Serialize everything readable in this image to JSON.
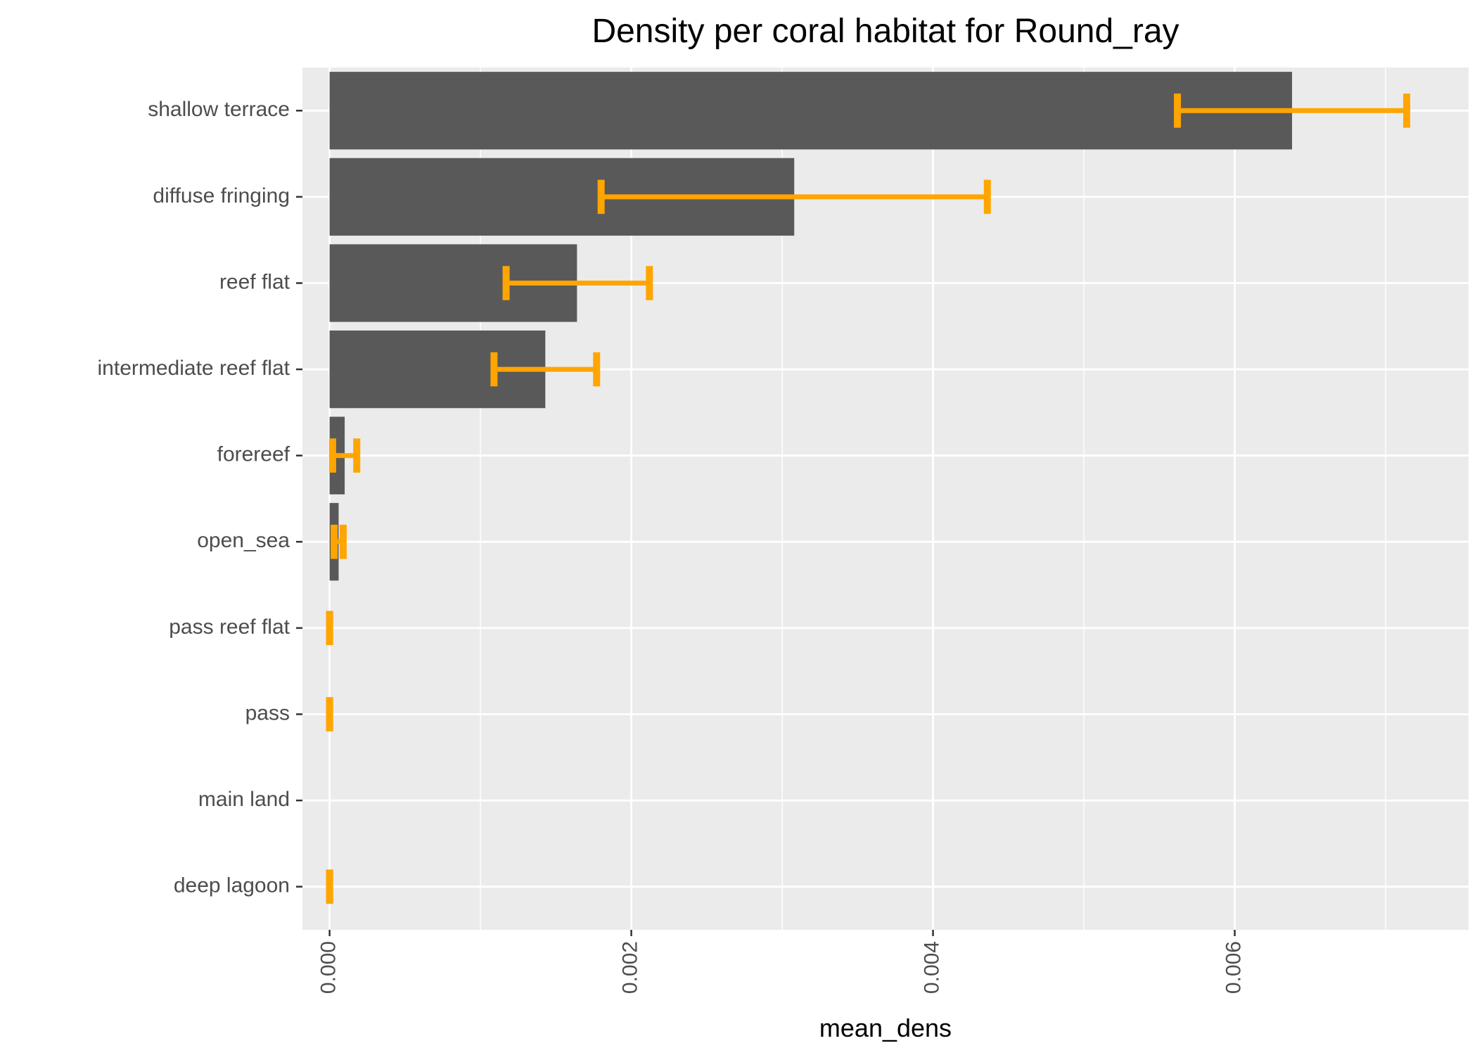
{
  "chart_data": {
    "type": "bar",
    "orientation": "horizontal",
    "title": "Density per coral habitat for Round_ray",
    "xlabel": "mean_dens",
    "ylabel": "",
    "xlim": [
      -0.00018,
      0.00755
    ],
    "xticks": [
      "0.000",
      "0.002",
      "0.004",
      "0.006"
    ],
    "xtick_values": [
      0,
      0.002,
      0.004,
      0.006
    ],
    "grid": true,
    "categories": [
      "shallow terrace",
      "diffuse fringing",
      "reef flat",
      "intermediate reef flat",
      "forereef",
      "open_sea",
      "pass reef flat",
      "pass",
      "main land",
      "deep lagoon"
    ],
    "values": [
      0.00638,
      0.00308,
      0.00164,
      0.00143,
      0.0001,
      6e-05,
      0,
      0,
      0,
      0
    ],
    "error_low": [
      0.00562,
      0.0018,
      0.00117,
      0.00109,
      2e-05,
      3e-05,
      0,
      0,
      null,
      0
    ],
    "error_high": [
      0.00714,
      0.00436,
      0.00212,
      0.00177,
      0.00018,
      9e-05,
      0,
      0,
      null,
      0
    ],
    "colors": {
      "bar": "#595959",
      "error": "#FFA500",
      "panel": "#EBEBEB",
      "grid": "#FFFFFF"
    }
  }
}
